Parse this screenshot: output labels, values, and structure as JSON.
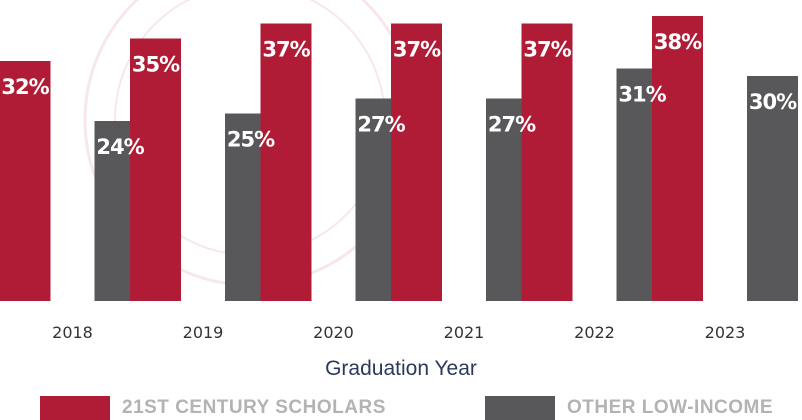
{
  "chart_data": {
    "type": "bar",
    "categories": [
      "2018",
      "2019",
      "2020",
      "2021",
      "2022",
      "2023"
    ],
    "series": [
      {
        "name": "21ST CENTURY SCHOLARS",
        "values": [
          32,
          35,
          37,
          37,
          37,
          38
        ],
        "color": "#b01c36"
      },
      {
        "name": "OTHER LOW-INCOME",
        "values": [
          24,
          25,
          27,
          27,
          31,
          30
        ],
        "color": "#58585a"
      }
    ],
    "value_suffix": "%",
    "xlabel": "Graduation Year",
    "xlabel_color": "#2b3a5c",
    "grid": false,
    "legend_position": "bottom"
  }
}
